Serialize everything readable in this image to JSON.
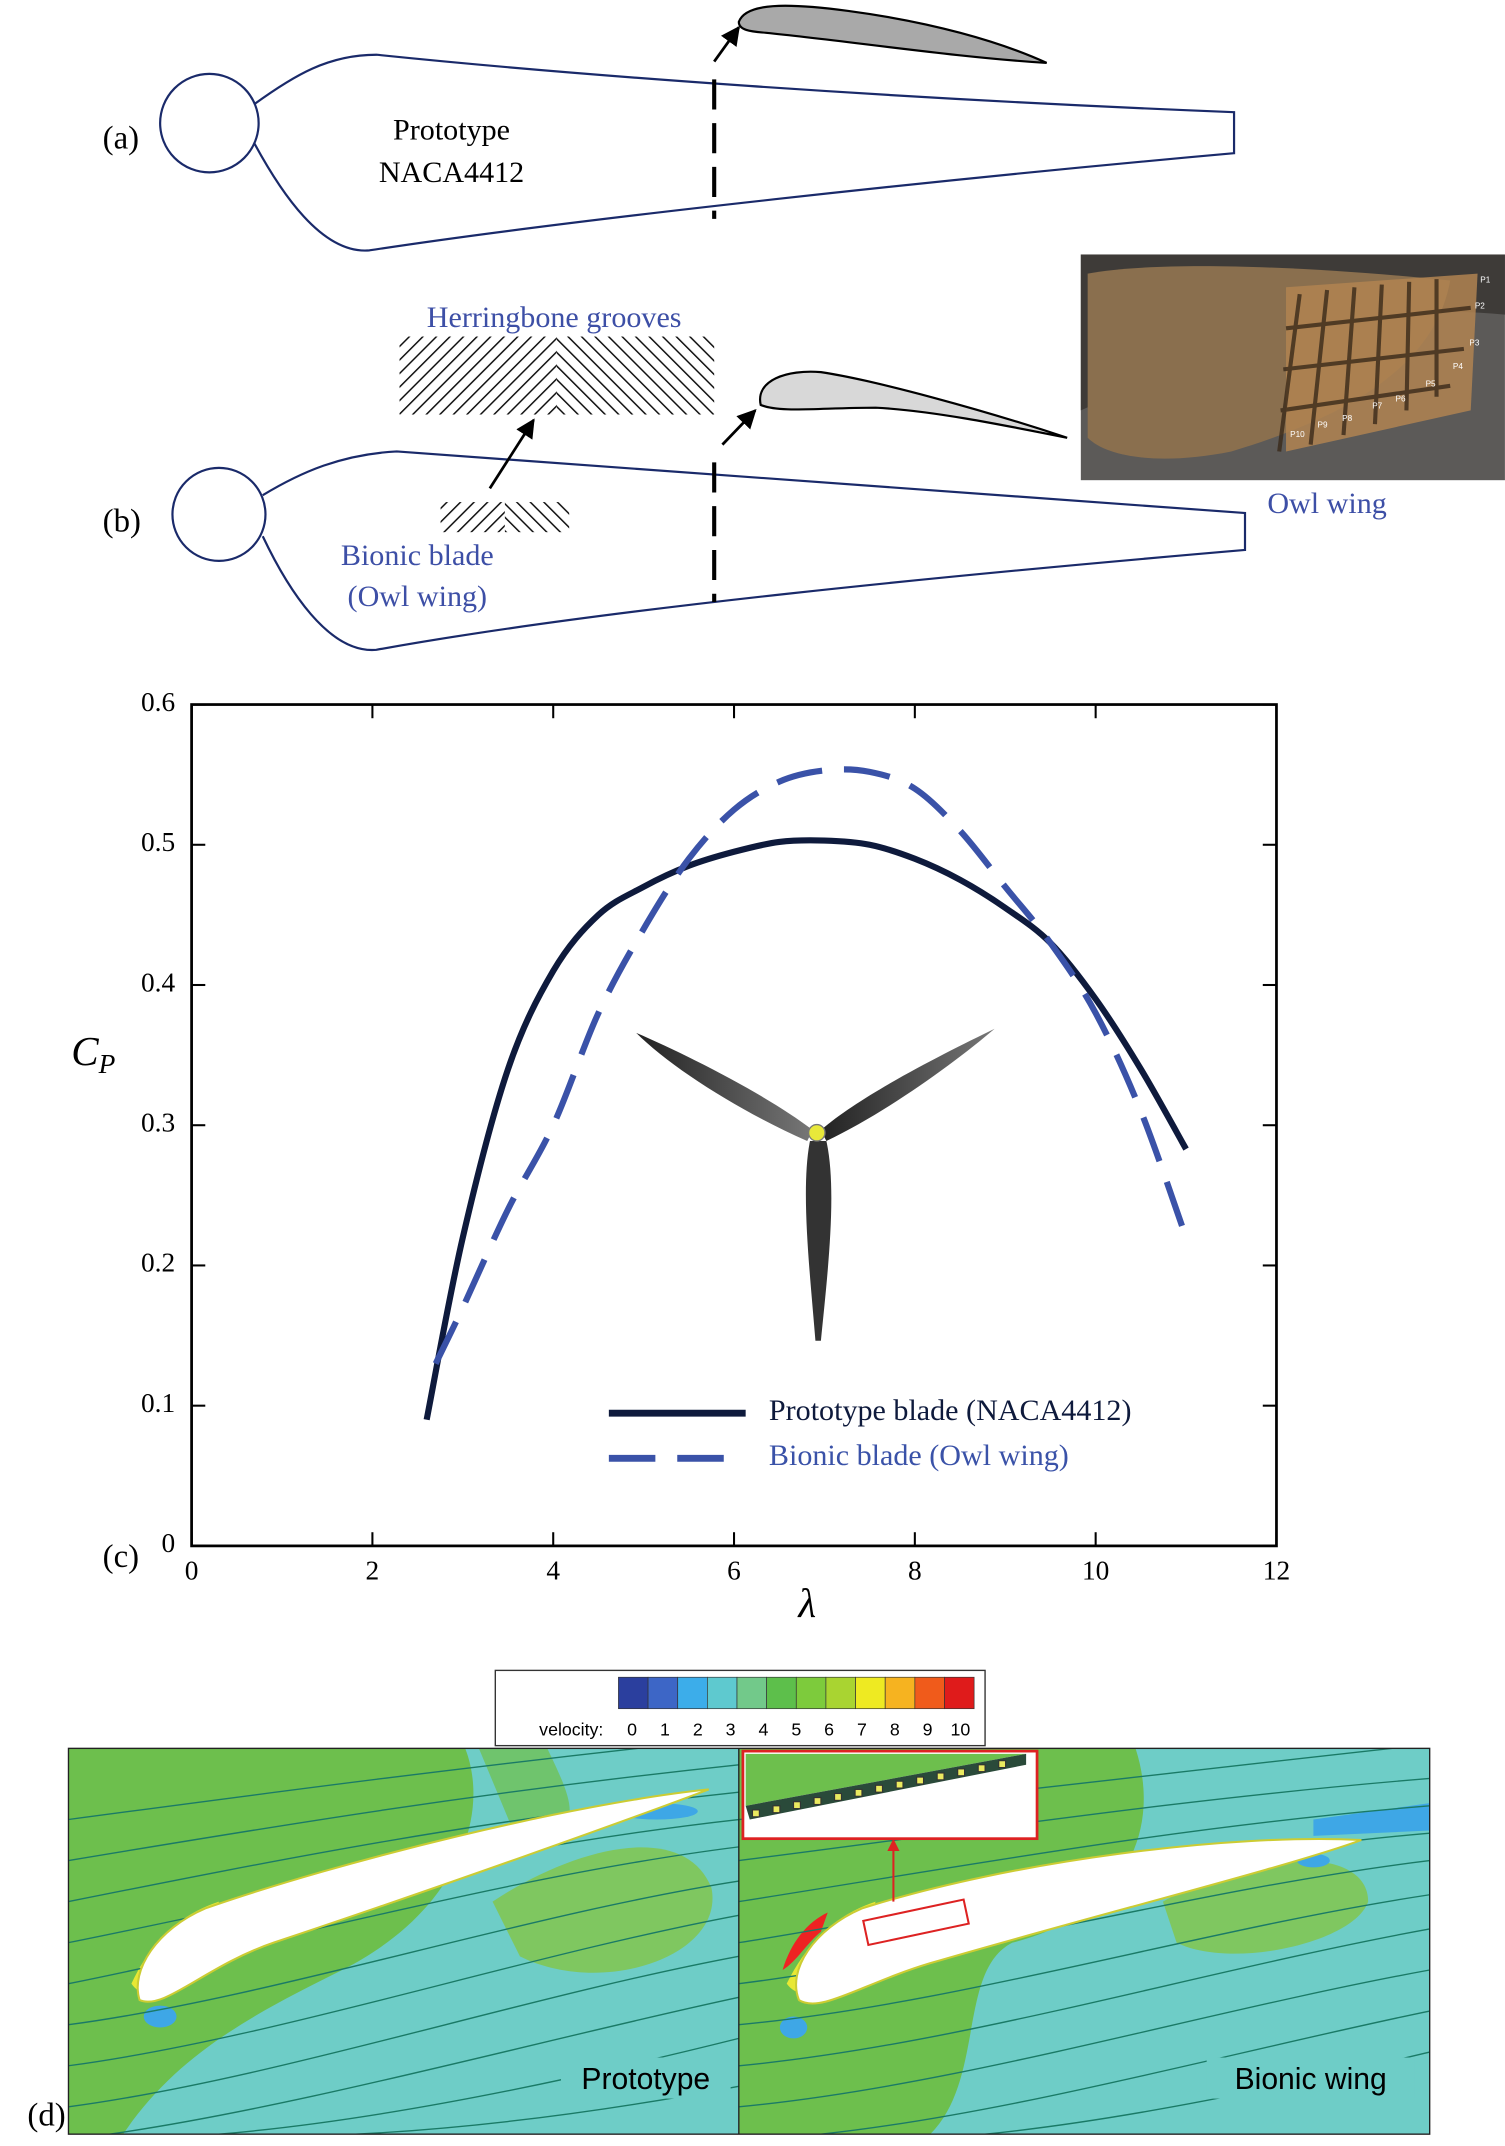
{
  "panel_a": {
    "label": "(a)",
    "line1": "Prototype",
    "line2": "NACA4412"
  },
  "panel_b": {
    "label": "(b)",
    "grooves_label": "Herringbone grooves",
    "blade_line1": "Bionic blade",
    "blade_line2": "(Owl wing)",
    "photo_label": "Owl wing",
    "feather_labels": [
      "P1",
      "P2",
      "P3",
      "P4",
      "P5",
      "P6",
      "P7",
      "P8",
      "P9",
      "P10"
    ]
  },
  "chart_data": {
    "type": "line",
    "panel_label": "(c)",
    "xlabel": "λ",
    "ylabel": "C",
    "ylabel_subscript": "P",
    "xlim": [
      0,
      12
    ],
    "xticks": [
      0,
      2,
      4,
      6,
      8,
      10,
      12
    ],
    "ylim": [
      0,
      0.6
    ],
    "yticks": [
      0,
      0.1,
      0.2,
      0.3,
      0.4,
      0.5,
      0.6
    ],
    "legend": "lower right",
    "series": [
      {
        "name": "Prototype blade (NACA4412)",
        "color": "#0e1a3c",
        "dash": "solid",
        "x": [
          2.6,
          3,
          3.5,
          4,
          4.5,
          5,
          5.5,
          6,
          6.5,
          7,
          7.5,
          8,
          8.5,
          9,
          9.5,
          10,
          10.5,
          11
        ],
        "values": [
          0.09,
          0.22,
          0.34,
          0.41,
          0.45,
          0.47,
          0.485,
          0.495,
          0.502,
          0.503,
          0.5,
          0.49,
          0.475,
          0.455,
          0.43,
          0.39,
          0.34,
          0.283
        ]
      },
      {
        "name": "Bionic blade (Owl wing)",
        "color": "#3a52a8",
        "dash": "dashed",
        "x": [
          2.7,
          3,
          3.5,
          4,
          4.5,
          5,
          5.5,
          6,
          6.5,
          7,
          7.5,
          8,
          8.5,
          9,
          9.5,
          10,
          10.5,
          11
        ],
        "values": [
          0.13,
          0.17,
          0.24,
          0.3,
          0.38,
          0.44,
          0.49,
          0.525,
          0.545,
          0.553,
          0.552,
          0.54,
          0.51,
          0.47,
          0.43,
          0.38,
          0.31,
          0.22
        ]
      }
    ]
  },
  "panel_d": {
    "label": "(d)",
    "colorbar_title": "velocity:",
    "colorbar_ticks": [
      0,
      1,
      2,
      3,
      4,
      5,
      6,
      7,
      8,
      9,
      10
    ],
    "colorbar_colors": [
      "#2b3f9e",
      "#3d66c6",
      "#3cadea",
      "#5ec9cf",
      "#72c98a",
      "#5dbf4b",
      "#7dcb3c",
      "#a9d431",
      "#eeea22",
      "#f6b320",
      "#f05b1b",
      "#df1b1b"
    ],
    "left_label": "Prototype",
    "right_label": "Bionic wing"
  }
}
